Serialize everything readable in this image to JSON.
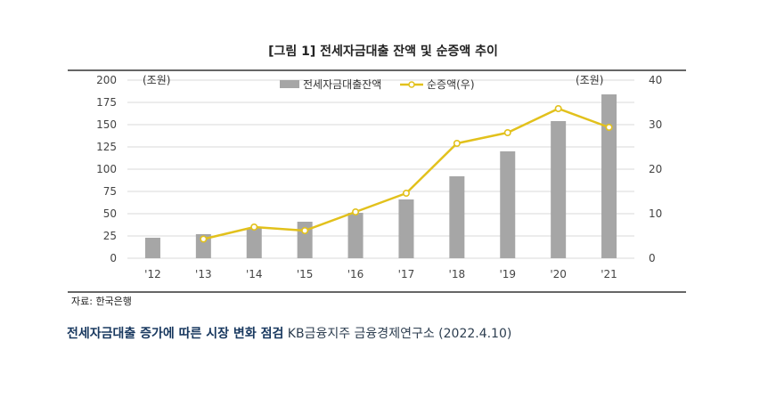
{
  "chart_data": {
    "type": "bar+line",
    "title": "[그림 1] 전세자금대출 잔액 및 순증액 추이",
    "categories": [
      "'12",
      "'13",
      "'14",
      "'15",
      "'16",
      "'17",
      "'18",
      "'19",
      "'20",
      "'21"
    ],
    "series": [
      {
        "name": "전세자금대출잔액",
        "type": "bar",
        "axis": "left",
        "color": "#a6a6a6",
        "values": [
          23,
          27,
          34,
          41,
          51,
          66,
          92,
          120,
          154,
          184
        ]
      },
      {
        "name": "순증액(우)",
        "type": "line",
        "axis": "right",
        "color": "#e2c11c",
        "values": [
          null,
          4.3,
          7.0,
          6.2,
          10.4,
          14.6,
          25.8,
          28.2,
          33.6,
          29.4
        ]
      }
    ],
    "left_axis": {
      "unit": "(조원)",
      "ylim": [
        0,
        200
      ],
      "ticks": [
        0,
        25,
        50,
        75,
        100,
        125,
        150,
        175,
        200
      ]
    },
    "right_axis": {
      "unit": "(조원)",
      "ylim": [
        0,
        40
      ],
      "ticks": [
        0,
        10,
        20,
        30,
        40
      ]
    },
    "grid": true,
    "legend_position": "top-center",
    "source_note": "자료: 한국은행"
  },
  "caption": {
    "headline": "전세자금대출 증가에 따른 시장 변화 점검",
    "source": "KB금융지주 금융경제연구소 (2022.4.10)"
  }
}
